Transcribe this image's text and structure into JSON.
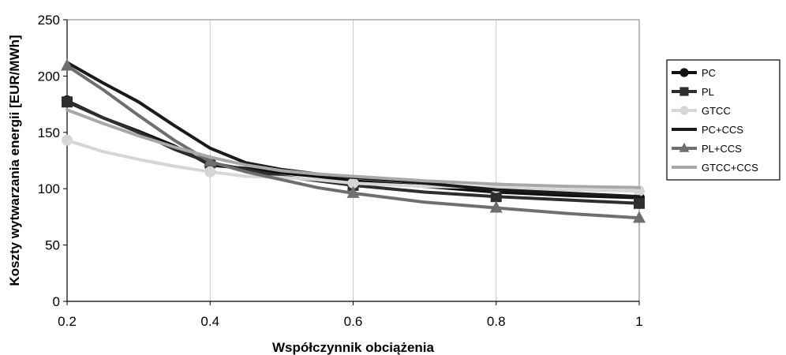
{
  "chart_data": {
    "type": "line",
    "xlabel": "Współczynnik obciążenia",
    "ylabel": "Koszty wytwarzania energii [EUR/MWh]",
    "x": [
      0.2,
      0.4,
      0.6,
      0.8,
      1.0
    ],
    "x_tick_labels": [
      "0.2",
      "0.4",
      "0.6",
      "0.8",
      "1"
    ],
    "xlim": [
      0.2,
      1.0
    ],
    "ylim": [
      0,
      250
    ],
    "y_ticks": [
      0,
      50,
      100,
      150,
      200,
      250
    ],
    "y_tick_labels": [
      "0",
      "50",
      "100",
      "150",
      "200",
      "250"
    ],
    "grid": "vertical",
    "legend_position": "right",
    "series": [
      {
        "name": "PC",
        "marker": "circle",
        "color": "#111111",
        "points": [
          [
            0.2,
            178
          ],
          [
            0.25,
            163
          ],
          [
            0.3,
            151
          ],
          [
            0.35,
            138
          ],
          [
            0.4,
            121
          ],
          [
            0.45,
            118
          ],
          [
            0.5,
            114
          ],
          [
            0.55,
            111
          ],
          [
            0.6,
            107
          ],
          [
            0.7,
            102
          ],
          [
            0.8,
            97
          ],
          [
            0.9,
            94
          ],
          [
            1.0,
            92
          ]
        ]
      },
      {
        "name": "PL",
        "marker": "square",
        "color": "#2e2e2e",
        "points": [
          [
            0.2,
            177
          ],
          [
            0.25,
            163
          ],
          [
            0.3,
            150
          ],
          [
            0.35,
            135
          ],
          [
            0.4,
            123
          ],
          [
            0.45,
            117
          ],
          [
            0.5,
            111
          ],
          [
            0.55,
            107
          ],
          [
            0.6,
            103
          ],
          [
            0.7,
            97
          ],
          [
            0.8,
            93
          ],
          [
            0.9,
            90
          ],
          [
            1.0,
            87
          ]
        ]
      },
      {
        "name": "GTCC",
        "marker": "circle",
        "color": "#d6d6d6",
        "points": [
          [
            0.2,
            143
          ],
          [
            0.25,
            133
          ],
          [
            0.3,
            126
          ],
          [
            0.35,
            120
          ],
          [
            0.4,
            115
          ],
          [
            0.45,
            111
          ],
          [
            0.5,
            110
          ],
          [
            0.55,
            108
          ],
          [
            0.6,
            105
          ],
          [
            0.7,
            102
          ],
          [
            0.8,
            101
          ],
          [
            0.9,
            99
          ],
          [
            1.0,
            98
          ]
        ]
      },
      {
        "name": "PC+CCS",
        "marker": "none",
        "color": "#1a1a1a",
        "points": [
          [
            0.2,
            212
          ],
          [
            0.25,
            194
          ],
          [
            0.3,
            177
          ],
          [
            0.35,
            156
          ],
          [
            0.4,
            136
          ],
          [
            0.45,
            123
          ],
          [
            0.5,
            117
          ],
          [
            0.55,
            113
          ],
          [
            0.6,
            110
          ],
          [
            0.7,
            105
          ],
          [
            0.8,
            99
          ],
          [
            0.9,
            96
          ],
          [
            1.0,
            93
          ]
        ]
      },
      {
        "name": "PL+CCS",
        "marker": "triangle",
        "color": "#6e6e6e",
        "points": [
          [
            0.2,
            209
          ],
          [
            0.25,
            188
          ],
          [
            0.3,
            165
          ],
          [
            0.35,
            143
          ],
          [
            0.4,
            124
          ],
          [
            0.45,
            115
          ],
          [
            0.5,
            108
          ],
          [
            0.55,
            101
          ],
          [
            0.6,
            96
          ],
          [
            0.7,
            88
          ],
          [
            0.8,
            83
          ],
          [
            0.9,
            78
          ],
          [
            1.0,
            74
          ]
        ]
      },
      {
        "name": "GTCC+CCS",
        "marker": "none",
        "color": "#a8a8a8",
        "points": [
          [
            0.2,
            170
          ],
          [
            0.25,
            158
          ],
          [
            0.3,
            147
          ],
          [
            0.35,
            137
          ],
          [
            0.4,
            128
          ],
          [
            0.45,
            121
          ],
          [
            0.5,
            116
          ],
          [
            0.55,
            113
          ],
          [
            0.6,
            111
          ],
          [
            0.7,
            107
          ],
          [
            0.8,
            104
          ],
          [
            0.9,
            102
          ],
          [
            1.0,
            101
          ]
        ]
      }
    ]
  }
}
